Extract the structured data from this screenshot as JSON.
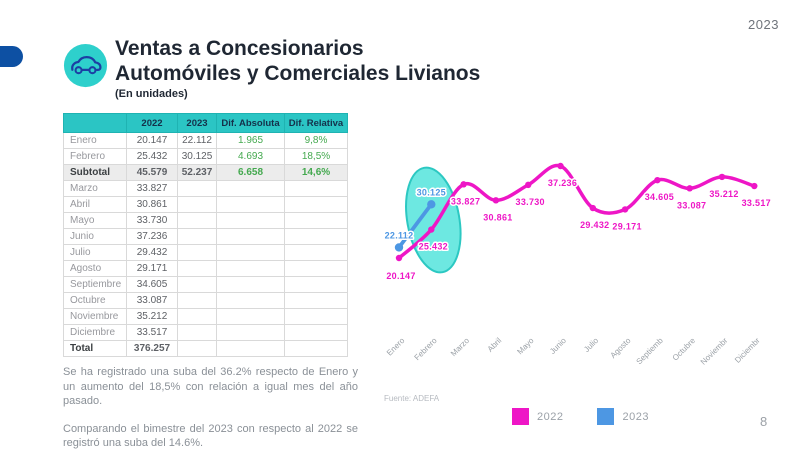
{
  "slide": {
    "year_badge": "2023",
    "page_number": "8",
    "title_line1": "Ventas a Concesionarios",
    "title_line2": "Automóviles y Comerciales Livianos",
    "subtitle": "(En unidades)",
    "source": "Fuente: ADEFA",
    "notes": [
      "Se ha registrado una suba del 36.2% respecto de Enero y un aumento del 18,5% con relación a igual mes del año pasado.",
      "Comparando el bimestre del 2023 con respecto al 2022 se registró una suba del 14.6%."
    ]
  },
  "table": {
    "headers": [
      "",
      "2022",
      "2023",
      "Dif. Absoluta",
      "Dif. Relativa"
    ],
    "rows": [
      {
        "label": "Enero",
        "v2022": "20.147",
        "v2023": "22.112",
        "dif_abs": "1.965",
        "dif_rel": "9,8%",
        "style": "normal"
      },
      {
        "label": "Febrero",
        "v2022": "25.432",
        "v2023": "30.125",
        "dif_abs": "4.693",
        "dif_rel": "18,5%",
        "style": "normal"
      },
      {
        "label": "Subtotal",
        "v2022": "45.579",
        "v2023": "52.237",
        "dif_abs": "6.658",
        "dif_rel": "14,6%",
        "style": "subtotal"
      },
      {
        "label": "Marzo",
        "v2022": "33.827",
        "v2023": "",
        "dif_abs": "",
        "dif_rel": "",
        "style": "normal"
      },
      {
        "label": "Abril",
        "v2022": "30.861",
        "v2023": "",
        "dif_abs": "",
        "dif_rel": "",
        "style": "normal"
      },
      {
        "label": "Mayo",
        "v2022": "33.730",
        "v2023": "",
        "dif_abs": "",
        "dif_rel": "",
        "style": "normal"
      },
      {
        "label": "Junio",
        "v2022": "37.236",
        "v2023": "",
        "dif_abs": "",
        "dif_rel": "",
        "style": "normal"
      },
      {
        "label": "Julio",
        "v2022": "29.432",
        "v2023": "",
        "dif_abs": "",
        "dif_rel": "",
        "style": "normal"
      },
      {
        "label": "Agosto",
        "v2022": "29.171",
        "v2023": "",
        "dif_abs": "",
        "dif_rel": "",
        "style": "normal"
      },
      {
        "label": "Septiembre",
        "v2022": "34.605",
        "v2023": "",
        "dif_abs": "",
        "dif_rel": "",
        "style": "normal"
      },
      {
        "label": "Octubre",
        "v2022": "33.087",
        "v2023": "",
        "dif_abs": "",
        "dif_rel": "",
        "style": "normal"
      },
      {
        "label": "Noviembre",
        "v2022": "35.212",
        "v2023": "",
        "dif_abs": "",
        "dif_rel": "",
        "style": "normal"
      },
      {
        "label": "Diciembre",
        "v2022": "33.517",
        "v2023": "",
        "dif_abs": "",
        "dif_rel": "",
        "style": "normal"
      },
      {
        "label": "Total",
        "v2022": "376.257",
        "v2023": "",
        "dif_abs": "",
        "dif_rel": "",
        "style": "total"
      }
    ]
  },
  "chart_data": {
    "type": "line",
    "categories": [
      "Enero",
      "Febrero",
      "Marzo",
      "Abril",
      "Mayo",
      "Junio",
      "Julio",
      "Agosto",
      "Septiembre",
      "Octubre",
      "Noviembre",
      "Diciembre"
    ],
    "tick_labels": [
      "Enero",
      "Febrero",
      "Marzo",
      "Abril",
      "Mayo",
      "Junio",
      "Julio",
      "Agosto",
      "Septiemb",
      "Octubre",
      "Noviembr",
      "Diciembr"
    ],
    "series": [
      {
        "name": "2022",
        "color": "#EE16C6",
        "values": [
          20147,
          25432,
          33827,
          30861,
          33730,
          37236,
          29432,
          29171,
          34605,
          33087,
          35212,
          33517
        ],
        "labels": [
          "20.147",
          "25.432",
          "33.827",
          "30.861",
          "33.730",
          "37.236",
          "29.432",
          "29.171",
          "34.605",
          "33.087",
          "35.212",
          "33.517"
        ]
      },
      {
        "name": "2023",
        "color": "#4D97E3",
        "values": [
          22112,
          30125
        ],
        "labels": [
          "22.112",
          "30.125"
        ]
      }
    ],
    "highlight_category": "Febrero",
    "highlight_color": "#49E2DA",
    "highlight_border": "#2CC8C2",
    "legend": [
      "2022",
      "2023"
    ],
    "legend_position": "bottom",
    "grid": false,
    "ylim": [
      19000,
      38500
    ]
  },
  "colors": {
    "accent_teal": "#2BC5C4",
    "navy": "#0D50A3",
    "green": "#44A94F",
    "magenta": "#EE16C6",
    "blue": "#4D97E3"
  }
}
